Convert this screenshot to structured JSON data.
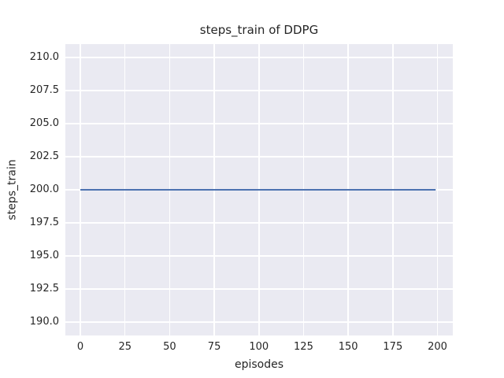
{
  "style": {
    "figure_background": "#ffffff",
    "plot_background": "#eaeaf2",
    "grid_color": "#ffffff",
    "text_color": "#262626",
    "line_color": "#4c72b0"
  },
  "chart_data": {
    "type": "line",
    "title": "steps_train of DDPG",
    "xlabel": "episodes",
    "ylabel": "steps_train",
    "xlim": [
      -8.4,
      208.6
    ],
    "ylim": [
      189,
      211
    ],
    "grid": true,
    "legend": false,
    "x_ticks": {
      "values": [
        0,
        25,
        50,
        75,
        100,
        125,
        150,
        175,
        200
      ],
      "labels": [
        "0",
        "25",
        "50",
        "75",
        "100",
        "125",
        "150",
        "175",
        "200"
      ]
    },
    "y_ticks": {
      "values": [
        190,
        192.5,
        195,
        197.5,
        200,
        202.5,
        205,
        207.5,
        210
      ],
      "labels": [
        "190.0",
        "192.5",
        "195.0",
        "197.5",
        "200.0",
        "202.5",
        "205.0",
        "207.5",
        "210.0"
      ]
    },
    "series": [
      {
        "name": "steps_train",
        "color": "#4c72b0",
        "x": [
          0,
          199
        ],
        "y": [
          200,
          200
        ]
      }
    ]
  }
}
